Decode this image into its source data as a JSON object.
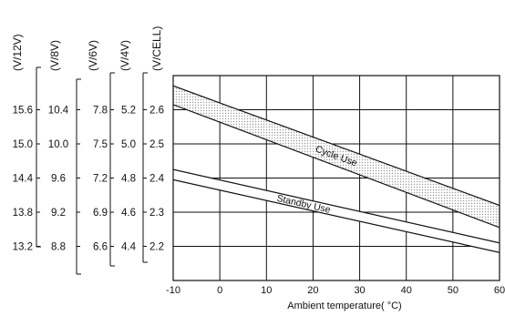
{
  "chart_data": {
    "type": "line",
    "xlabel": "Ambient  temperature( °C)",
    "xlim": [
      -10,
      60
    ],
    "ylim": [
      2.1,
      2.7
    ],
    "x_ticks": [
      "-10",
      "0",
      "10",
      "20",
      "30",
      "40",
      "50",
      "60"
    ],
    "y_scales": [
      {
        "header": "(V/12V)",
        "ticks": [
          "15.6",
          "15.0",
          "14.4",
          "13.8",
          "13.2"
        ]
      },
      {
        "header": "(V/8V)",
        "ticks": [
          "10.4",
          "10.0",
          "9.6",
          "9.2",
          "8.8"
        ]
      },
      {
        "header": "(V/6V)",
        "ticks": [
          "7.8",
          "7.5",
          "7.2",
          "6.9",
          "6.6"
        ]
      },
      {
        "header": "(V/4V)",
        "ticks": [
          "5.2",
          "5.0",
          "4.8",
          "4.6",
          "4.4"
        ]
      },
      {
        "header": "(V/CELL)",
        "ticks": [
          "2.6",
          "2.5",
          "2.4",
          "2.3",
          "2.2"
        ]
      }
    ],
    "y_tick_values": [
      2.6,
      2.5,
      2.4,
      2.3,
      2.2
    ],
    "bands": [
      {
        "name": "Cycle Use",
        "upper": {
          "x": [
            -10,
            60
          ],
          "y": [
            2.67,
            2.32
          ]
        },
        "lower": {
          "x": [
            -10,
            60
          ],
          "y": [
            2.615,
            2.255
          ]
        },
        "fill": "dotted"
      },
      {
        "name": "Standby Use",
        "upper": {
          "x": [
            -10,
            60
          ],
          "y": [
            2.425,
            2.21
          ]
        },
        "lower": {
          "x": [
            -10,
            60
          ],
          "y": [
            2.395,
            2.182
          ]
        },
        "fill": "none"
      }
    ],
    "grid": true,
    "colors": {
      "line": "#111111",
      "grid": "#111111",
      "band_fill": "#e6e6e6"
    }
  }
}
